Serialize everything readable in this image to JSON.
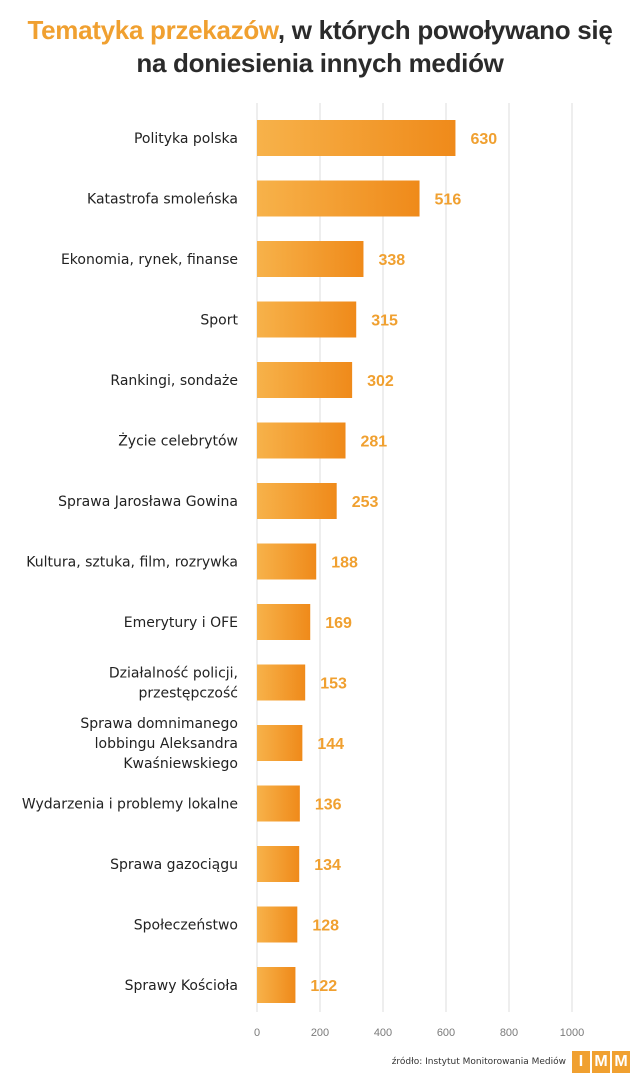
{
  "title": {
    "accent": "Tematyka przekazów",
    "line1_rest": ", w których powoływano się",
    "line2": "na doniesienia innych mediów"
  },
  "chart_data": {
    "type": "bar",
    "orientation": "horizontal",
    "title": "Tematyka przekazów, w których powoływano się na doniesienia innych mediów",
    "categories": [
      [
        "Polityka polska"
      ],
      [
        "Katastrofa smoleńska"
      ],
      [
        "Ekonomia, rynek, finanse"
      ],
      [
        "Sport"
      ],
      [
        "Rankingi, sondaże"
      ],
      [
        "Życie celebrytów"
      ],
      [
        "Sprawa Jarosława Gowina"
      ],
      [
        "Kultura, sztuka, film, rozrywka"
      ],
      [
        "Emerytury i OFE"
      ],
      [
        "Działalność policji,",
        "przestępczość"
      ],
      [
        "Sprawa domnimanego",
        "lobbingu Aleksandra",
        "Kwaśniewskiego"
      ],
      [
        "Wydarzenia i problemy lokalne"
      ],
      [
        "Sprawa gazociągu"
      ],
      [
        "Społeczeństwo"
      ],
      [
        "Sprawy Kościoła"
      ]
    ],
    "values": [
      630,
      516,
      338,
      315,
      302,
      281,
      253,
      188,
      169,
      153,
      144,
      136,
      134,
      128,
      122
    ],
    "xlim": [
      0,
      1000
    ],
    "xticks": [
      0,
      200,
      400,
      600,
      800,
      1000
    ],
    "grid": true,
    "bar_color": "#f39a1e",
    "label_color": "#f0a030"
  },
  "footer": {
    "source": "źródło: Instytut Monitorowania Mediów",
    "logo_letters": [
      "I",
      "M",
      "M"
    ]
  }
}
